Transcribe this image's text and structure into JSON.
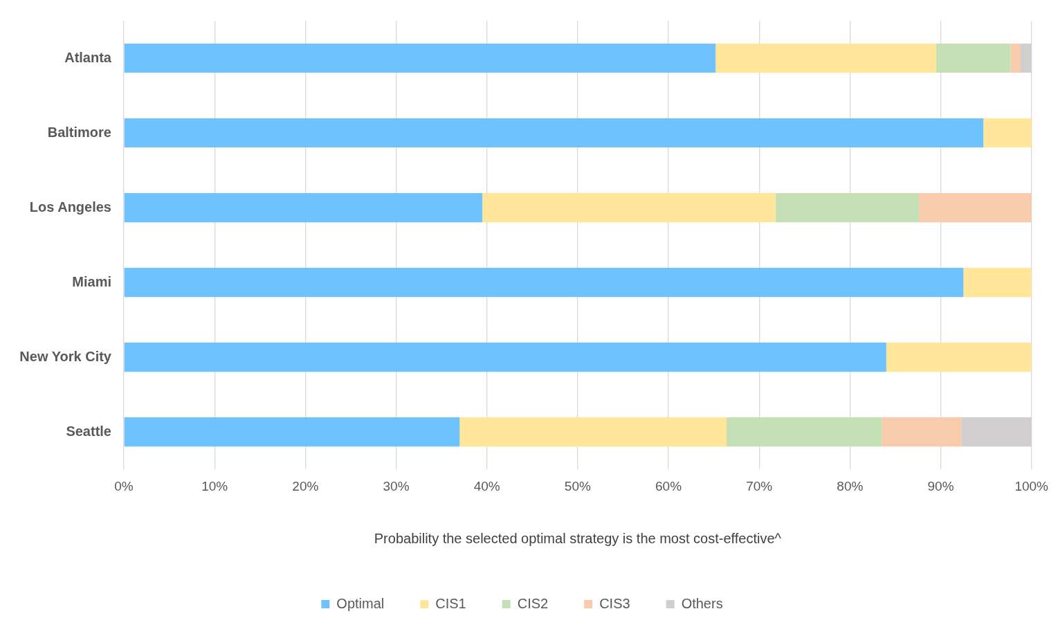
{
  "chart_data": {
    "type": "bar",
    "orientation": "horizontal",
    "stacked": true,
    "xlabel": "Probability the selected optimal strategy is the most cost-effective^",
    "categories": [
      "Atlanta",
      "Baltimore",
      "Los Angeles",
      "Miami",
      "New York City",
      "Seattle"
    ],
    "series": [
      {
        "name": "Optimal",
        "color": "#6ec3ff",
        "values": [
          65.2,
          94.7,
          39.5,
          92.5,
          84.0,
          37.0
        ]
      },
      {
        "name": "CIS1",
        "color": "#ffe699",
        "values": [
          24.3,
          5.3,
          32.3,
          7.5,
          16.0,
          29.4
        ]
      },
      {
        "name": "CIS2",
        "color": "#c5e0b4",
        "values": [
          8.2,
          null,
          15.8,
          null,
          null,
          17.1
        ]
      },
      {
        "name": "CIS3",
        "color": "#f8cbad",
        "values": [
          1.1,
          null,
          12.4,
          null,
          null,
          8.8
        ]
      },
      {
        "name": "Others",
        "color": "#d0cece",
        "values": [
          1.2,
          null,
          null,
          null,
          null,
          7.7
        ]
      }
    ],
    "xlim": [
      0,
      100
    ],
    "xticks": [
      {
        "value": 0,
        "label": "0%"
      },
      {
        "value": 10,
        "label": "10%"
      },
      {
        "value": 20,
        "label": "20%"
      },
      {
        "value": 30,
        "label": "30%"
      },
      {
        "value": 40,
        "label": "40%"
      },
      {
        "value": 50,
        "label": "50%"
      },
      {
        "value": 60,
        "label": "60%"
      },
      {
        "value": 70,
        "label": "70%"
      },
      {
        "value": 80,
        "label": "80%"
      },
      {
        "value": 90,
        "label": "90%"
      },
      {
        "value": 100,
        "label": "100%"
      }
    ],
    "grid": "x",
    "legend": "bottom"
  }
}
